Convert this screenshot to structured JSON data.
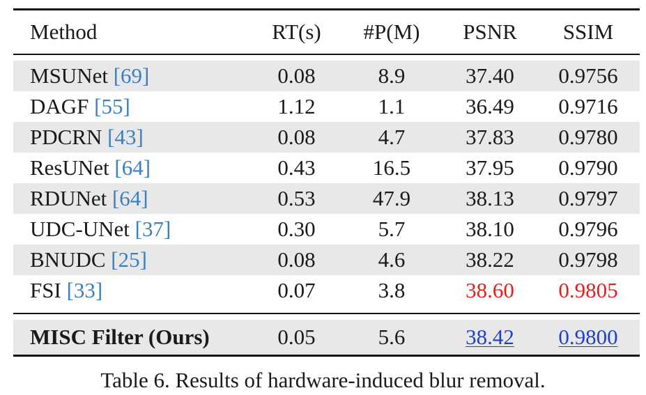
{
  "table": {
    "headers": [
      "Method",
      "RT(s)",
      "#P(M)",
      "PSNR",
      "SSIM"
    ],
    "rows": [
      {
        "method": "MSUNet",
        "cite": "[69]",
        "rt": "0.08",
        "params": "8.9",
        "psnr": "37.40",
        "ssim": "0.9756"
      },
      {
        "method": "DAGF",
        "cite": "[55]",
        "rt": "1.12",
        "params": "1.1",
        "psnr": "36.49",
        "ssim": "0.9716"
      },
      {
        "method": "PDCRN",
        "cite": "[43]",
        "rt": "0.08",
        "params": "4.7",
        "psnr": "37.83",
        "ssim": "0.9780"
      },
      {
        "method": "ResUNet",
        "cite": "[64]",
        "rt": "0.43",
        "params": "16.5",
        "psnr": "37.95",
        "ssim": "0.9790"
      },
      {
        "method": "RDUNet",
        "cite": "[64]",
        "rt": "0.53",
        "params": "47.9",
        "psnr": "38.13",
        "ssim": "0.9797"
      },
      {
        "method": "UDC-UNet",
        "cite": "[37]",
        "rt": "0.30",
        "params": "5.7",
        "psnr": "38.10",
        "ssim": "0.9796"
      },
      {
        "method": "BNUDC",
        "cite": "[25]",
        "rt": "0.08",
        "params": "4.6",
        "psnr": "38.22",
        "ssim": "0.9798"
      },
      {
        "method": "FSI",
        "cite": "[33]",
        "rt": "0.07",
        "params": "3.8",
        "psnr": "38.60",
        "ssim": "0.9805"
      }
    ],
    "ours": {
      "method": "MISC Filter (Ours)",
      "rt": "0.05",
      "params": "5.6",
      "psnr": "38.42",
      "ssim": "0.9800"
    }
  },
  "caption": "Table 6. Results of hardware-induced blur removal.",
  "colors": {
    "best": "#e51e1e",
    "second": "#1f3fcf",
    "citation": "#3c7fc0",
    "row_shade": "#e8e8e8"
  }
}
